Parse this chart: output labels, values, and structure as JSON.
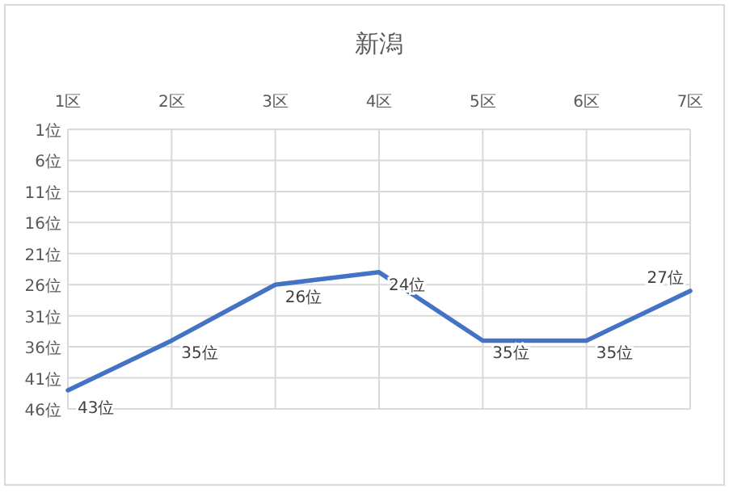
{
  "chart_data": {
    "type": "line",
    "title": "新潟",
    "categories": [
      "1区",
      "2区",
      "3区",
      "4区",
      "5区",
      "6区",
      "7区"
    ],
    "series": [
      {
        "color": "#4472c4",
        "values": [
          43,
          35,
          26,
          24,
          35,
          35,
          27
        ],
        "value_labels": [
          "43位",
          "35位",
          "26位",
          "24位",
          "35位",
          "35位",
          "27位"
        ]
      }
    ],
    "ylim": [
      46,
      1
    ],
    "yticks": [
      {
        "value": 1,
        "label": "1位"
      },
      {
        "value": 6,
        "label": "6位"
      },
      {
        "value": 11,
        "label": "11位"
      },
      {
        "value": 16,
        "label": "16位"
      },
      {
        "value": 21,
        "label": "21位"
      },
      {
        "value": 26,
        "label": "26位"
      },
      {
        "value": 31,
        "label": "31位"
      },
      {
        "value": 36,
        "label": "36位"
      },
      {
        "value": 41,
        "label": "41位"
      },
      {
        "value": 46,
        "label": "46位"
      }
    ],
    "grid": true,
    "marker": "none",
    "line_style": "solid"
  }
}
